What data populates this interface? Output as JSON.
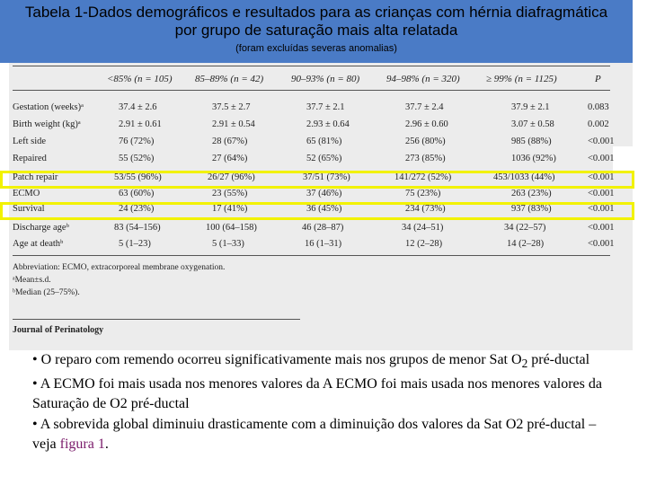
{
  "header": {
    "title_line1": "Tabela 1-Dados demográficos e resultados para as crianças com hérnia diafragmática",
    "title_line2": "por grupo de saturação mais alta relatada",
    "subtitle": "(foram excluídas severas anomalias)"
  },
  "table": {
    "columns": [
      "<85% (n = 105)",
      "85–89% (n = 42)",
      "90–93% (n = 80)",
      "94–98% (n = 320)",
      "≥ 99% (n = 1125)",
      "P"
    ],
    "rows": [
      {
        "label": "Gestation (weeks)ᵃ",
        "cells": [
          "37.4 ± 2.6",
          "37.5 ± 2.7",
          "37.7 ± 2.1",
          "37.7 ± 2.4",
          "37.9 ± 2.1",
          "0.083"
        ]
      },
      {
        "label": "Birth weight (kg)ᵃ",
        "cells": [
          "2.91 ± 0.61",
          "2.91 ± 0.54",
          "2.93 ± 0.64",
          "2.96 ± 0.60",
          "3.07 ± 0.58",
          "0.002"
        ]
      },
      {
        "label": "Left side",
        "cells": [
          "76 (72%)",
          "28 (67%)",
          "65 (81%)",
          "256 (80%)",
          "985 (88%)",
          "<0.001"
        ]
      },
      {
        "label": "Repaired",
        "cells": [
          "55 (52%)",
          "27 (64%)",
          "52 (65%)",
          "273 (85%)",
          "1036 (92%)",
          "<0.001"
        ]
      },
      {
        "label": "Patch repair",
        "cells": [
          "53/55 (96%)",
          "26/27 (96%)",
          "37/51 (73%)",
          "141/272 (52%)",
          "453/1033 (44%)",
          "<0.001"
        ]
      },
      {
        "label": "ECMO",
        "cells": [
          "63 (60%)",
          "23 (55%)",
          "37 (46%)",
          "75 (23%)",
          "263 (23%)",
          "<0.001"
        ]
      },
      {
        "label": "Survival",
        "cells": [
          "24 (23%)",
          "17 (41%)",
          "36 (45%)",
          "234 (73%)",
          "937 (83%)",
          "<0.001"
        ]
      },
      {
        "label": "Discharge ageᵇ",
        "cells": [
          "83 (54–156)",
          "100 (64–158)",
          "46 (28–87)",
          "34 (24–51)",
          "34 (22–57)",
          "<0.001"
        ]
      },
      {
        "label": "Age at deathᵇ",
        "cells": [
          "5 (1–23)",
          "5 (1–33)",
          "16 (1–31)",
          "12 (2–28)",
          "14 (2–28)",
          "<0.001"
        ]
      }
    ],
    "footnotes": [
      "Abbreviation: ECMO, extracorporeal membrane oxygenation.",
      "ᵃMean±s.d.",
      "ᵇMedian (25–75%)."
    ],
    "journal": "Journal of Perinatology"
  },
  "highlight_color": "#f2f200",
  "bullets": [
    {
      "prefix": "• O reparo com remendo ocorreu significativamente mais nos grupos de menor Sat O",
      "sub": "2",
      "suffix": " pré-ductal"
    },
    {
      "text": "• A ECMO foi mais usada nos menores valores da  A ECMO foi mais usada nos menores valores da  Saturação de O2 pré-ductal"
    },
    {
      "text_before": "• A sobrevida global diminuiu drasticamente com a diminuição dos valores da Sat O2 pré-ductal –veja ",
      "link": "figura 1",
      "text_after": "."
    }
  ]
}
